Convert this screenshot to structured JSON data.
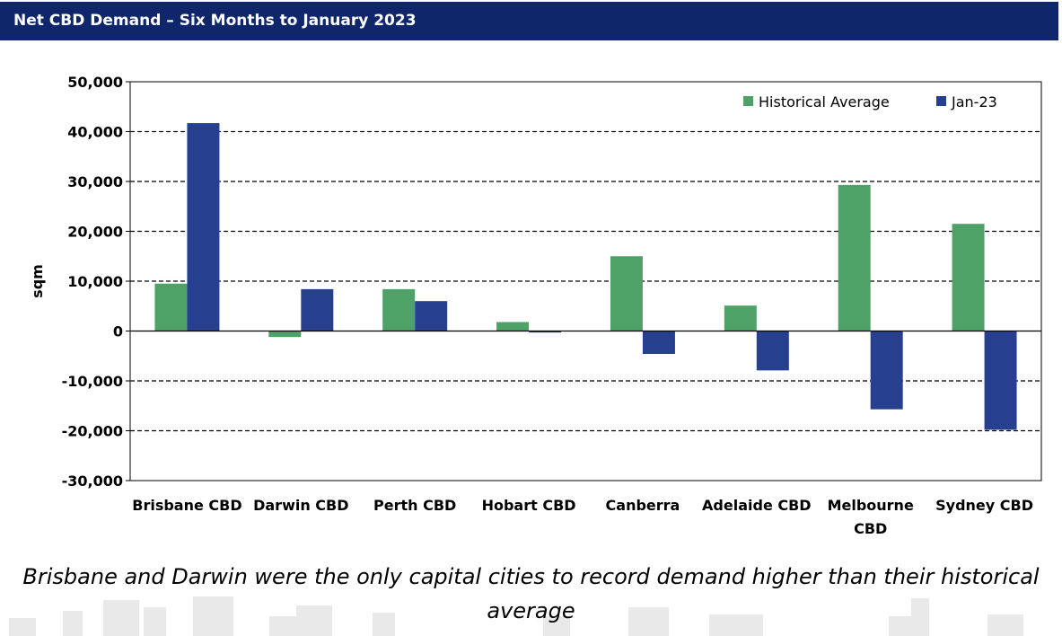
{
  "header": {
    "title": "Net CBD Demand – Six Months to January 2023"
  },
  "caption": "Brisbane and Darwin were the only capital cities to record demand higher than their historical average",
  "chart_data": {
    "type": "bar",
    "title": "",
    "ylabel": "sqm",
    "xlabel": "",
    "ylim": [
      -30000,
      50000
    ],
    "ytick_step": 10000,
    "ytick_labels": [
      "50,000",
      "40,000",
      "30,000",
      "20,000",
      "10,000",
      "0",
      "-10,000",
      "-20,000",
      "-30,000"
    ],
    "grid": true,
    "legend": "top-right",
    "categories": [
      [
        "Brisbane CBD"
      ],
      [
        "Darwin CBD"
      ],
      [
        "Perth CBD"
      ],
      [
        "Hobart CBD"
      ],
      [
        "Canberra"
      ],
      [
        "Adelaide CBD"
      ],
      [
        "Melbourne",
        "CBD"
      ],
      [
        "Sydney CBD"
      ]
    ],
    "series": [
      {
        "name": "Historical Average",
        "color": "#4ea267",
        "values": [
          9500,
          -1200,
          8400,
          1800,
          15000,
          5100,
          29300,
          21500
        ]
      },
      {
        "name": "Jan-23",
        "color": "#26408f",
        "values": [
          41700,
          8400,
          6000,
          -300,
          -4600,
          -7900,
          -15700,
          -19800
        ]
      }
    ]
  }
}
